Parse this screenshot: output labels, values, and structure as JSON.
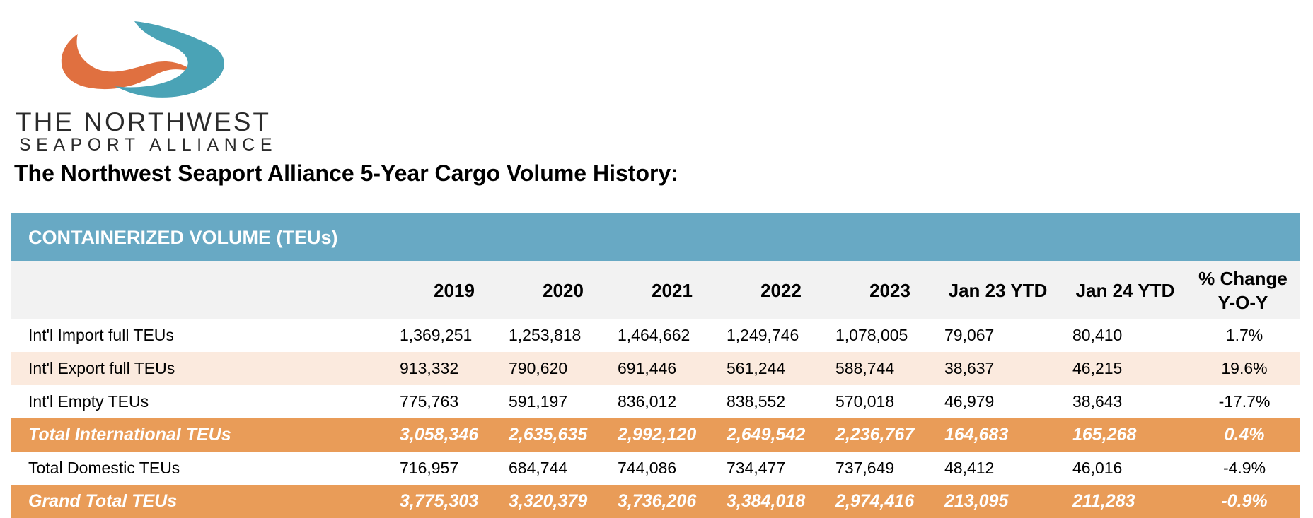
{
  "logo": {
    "line1": "THE NORTHWEST",
    "line2": "SEAPORT ALLIANCE",
    "colors": {
      "orange": "#e07040",
      "teal": "#4aa3b6"
    }
  },
  "page_title": "The Northwest Seaport Alliance 5-Year Cargo Volume History:",
  "table": {
    "section_title": "CONTAINERIZED VOLUME (TEUs)",
    "columns": [
      "2019",
      "2020",
      "2021",
      "2022",
      "2023",
      "Jan 23 YTD",
      "Jan 24 YTD",
      "% Change Y-O-Y"
    ],
    "rows": [
      {
        "label": "Int'l Import full TEUs",
        "values": [
          "1,369,251",
          "1,253,818",
          "1,464,662",
          "1,249,746",
          "1,078,005",
          "79,067",
          "80,410",
          "1.7%"
        ]
      },
      {
        "label": "Int'l Export full TEUs",
        "values": [
          "913,332",
          "790,620",
          "691,446",
          "561,244",
          "588,744",
          "38,637",
          "46,215",
          "19.6%"
        ]
      },
      {
        "label": "Int'l Empty TEUs",
        "values": [
          "775,763",
          "591,197",
          "836,012",
          "838,552",
          "570,018",
          "46,979",
          "38,643",
          "-17.7%"
        ]
      },
      {
        "label": "Total International TEUs",
        "values": [
          "3,058,346",
          "2,635,635",
          "2,992,120",
          "2,649,542",
          "2,236,767",
          "164,683",
          "165,268",
          "0.4%"
        ]
      },
      {
        "label": "Total Domestic TEUs",
        "values": [
          "716,957",
          "684,744",
          "744,086",
          "734,477",
          "737,649",
          "48,412",
          "46,016",
          "-4.9%"
        ]
      },
      {
        "label": "Grand Total TEUs",
        "values": [
          "3,775,303",
          "3,320,379",
          "3,736,206",
          "3,384,018",
          "2,974,416",
          "213,095",
          "211,283",
          "-0.9%"
        ]
      }
    ],
    "colors": {
      "header_band": "#68a9c4",
      "column_header_bg": "#f2f2f2",
      "shaded_row": "#fbeade",
      "total_row": "#e99c58"
    }
  }
}
